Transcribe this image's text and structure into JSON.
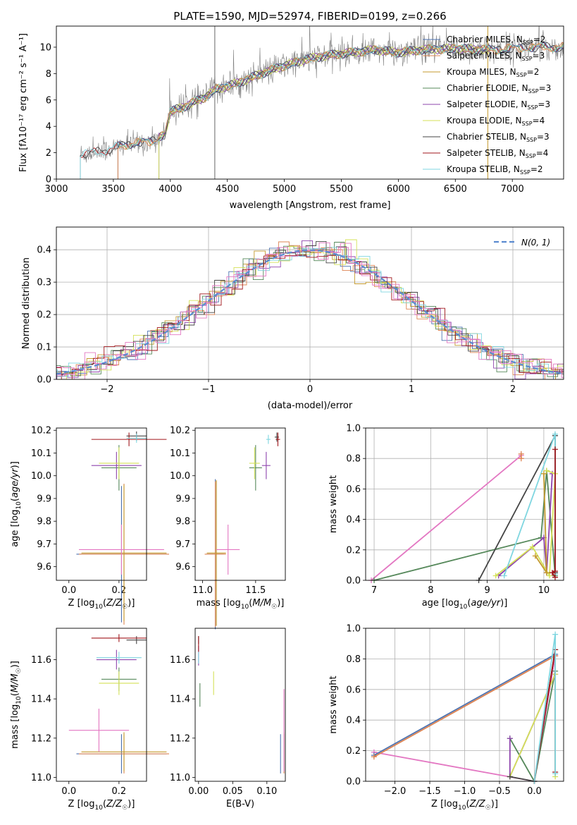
{
  "title": "PLATE=1590, MJD=52974, FIBERID=0199, z=0.266",
  "colors": {
    "Chabrier MILES": "#4c72b0",
    "Salpeter MILES": "#dd8452",
    "Kroupa MILES": "#c49a2e",
    "Chabrier ELODIE": "#55885a",
    "Salpeter ELODIE": "#8e44ad",
    "Kroupa ELODIE": "#d4e157",
    "Chabrier STELIB": "#444444",
    "Salpeter STELIB": "#a0161b",
    "Kroupa STELIB": "#7fd6e0"
  },
  "chart_data": [
    {
      "id": "spectrum",
      "type": "line",
      "xlabel": "wavelength [Angstrom, rest frame]",
      "ylabel": "Flux [fλ10⁻¹⁷ erg cm⁻² s⁻¹ A⁻¹]",
      "xlim": [
        3000,
        7450
      ],
      "ylim": [
        0,
        11.6
      ],
      "xticks": [
        3000,
        3500,
        4000,
        4500,
        5000,
        5500,
        6000,
        6500,
        7000
      ],
      "yticks": [
        0,
        2,
        4,
        6,
        8,
        10
      ],
      "legend_position": "upper-right",
      "legend": [
        {
          "text": "Chabrier MILES, N",
          "sub": "SSP",
          "tail": "=2",
          "series": "Chabrier MILES"
        },
        {
          "text": "Salpeter MILES, N",
          "sub": "SSP",
          "tail": "=3",
          "series": "Salpeter MILES"
        },
        {
          "text": "Kroupa MILES, N",
          "sub": "SSP",
          "tail": "=2",
          "series": "Kroupa MILES"
        },
        {
          "text": "Chabrier ELODIE, N",
          "sub": "SSP",
          "tail": "=3",
          "series": "Chabrier ELODIE"
        },
        {
          "text": "Salpeter ELODIE, N",
          "sub": "SSP",
          "tail": "=3",
          "series": "Salpeter ELODIE"
        },
        {
          "text": "Kroupa ELODIE, N",
          "sub": "SSP",
          "tail": "=4",
          "series": "Kroupa ELODIE"
        },
        {
          "text": "Chabrier STELIB, N",
          "sub": "SSP",
          "tail": "=3",
          "series": "Chabrier STELIB"
        },
        {
          "text": "Salpeter STELIB, N",
          "sub": "SSP",
          "tail": "=4",
          "series": "Salpeter STELIB"
        },
        {
          "text": "Kroupa STELIB, N",
          "sub": "SSP",
          "tail": "=2",
          "series": "Kroupa STELIB"
        }
      ],
      "continuum": {
        "x": [
          3210,
          3400,
          3600,
          3850,
          3950,
          4000,
          4150,
          4300,
          4400,
          4600,
          4800,
          5000,
          5200,
          5400,
          5600,
          5800,
          6000,
          6200,
          6500,
          6800,
          7000,
          7200
        ],
        "y": [
          1.9,
          2.1,
          2.6,
          2.9,
          3.4,
          5.1,
          5.6,
          6.2,
          6.8,
          7.3,
          8.0,
          8.6,
          9.1,
          9.4,
          9.6,
          9.8,
          9.6,
          9.8,
          9.9,
          9.8,
          9.9,
          10.0
        ]
      },
      "series": [
        {
          "name": "Chabrier MILES",
          "range": [
            3540,
            7450
          ]
        },
        {
          "name": "Salpeter MILES",
          "range": [
            3540,
            7450
          ]
        },
        {
          "name": "Kroupa MILES",
          "range": [
            3540,
            7450
          ]
        },
        {
          "name": "Chabrier ELODIE",
          "range": [
            3900,
            6800
          ]
        },
        {
          "name": "Salpeter ELODIE",
          "range": [
            3900,
            6800
          ]
        },
        {
          "name": "Kroupa ELODIE",
          "range": [
            3900,
            6800
          ]
        },
        {
          "name": "Chabrier STELIB",
          "range": [
            3210,
            7450
          ]
        },
        {
          "name": "Salpeter STELIB",
          "range": [
            3210,
            7450
          ]
        },
        {
          "name": "Kroupa STELIB",
          "range": [
            3210,
            7450
          ]
        }
      ],
      "observed": {
        "name": "data",
        "range": [
          3210,
          7450
        ],
        "color": "#808080"
      }
    },
    {
      "id": "residuals",
      "type": "histogram",
      "xlabel": "(data-model)/error",
      "ylabel": "Normed distribution",
      "xlim": [
        -2.5,
        2.5
      ],
      "ylim": [
        0,
        0.47
      ],
      "xticks": [
        -2,
        -1,
        0,
        1,
        2
      ],
      "yticks": [
        0,
        0.1,
        0.2,
        0.3,
        0.4
      ],
      "grid": true,
      "legend_position": "upper-right",
      "legend_label": "N(0, 1)",
      "gaussian": {
        "mean": 0,
        "sigma": 1,
        "color": "#5b8bd0"
      }
    },
    {
      "id": "age-vs-Z",
      "type": "errorbar",
      "xlabel": "Z [log10(Z/Z☉)]",
      "ylabel": "age  [log10(age/yr)]",
      "xlim": [
        -0.05,
        0.31
      ],
      "ylim": [
        9.54,
        10.21
      ],
      "xticks": [
        0.0,
        0.2
      ],
      "yticks": [
        9.6,
        9.7,
        9.8,
        9.9,
        10.0,
        10.1,
        10.2
      ],
      "points": [
        {
          "s": "Chabrier MILES",
          "x": 0.21,
          "xerr": 0.18,
          "y": 9.655,
          "yerr": 0.3
        },
        {
          "s": "Salpeter MILES",
          "x": 0.22,
          "xerr": 0.18,
          "y": 9.655,
          "yerr": 0.31
        },
        {
          "s": "Kroupa MILES",
          "x": 0.22,
          "xerr": 0.17,
          "y": 9.66,
          "yerr": 0.3
        },
        {
          "s": "Chabrier ELODIE",
          "x": 0.2,
          "xerr": 0.07,
          "y": 10.035,
          "yerr": 0.1
        },
        {
          "s": "Salpeter ELODIE",
          "x": 0.19,
          "xerr": 0.1,
          "y": 10.045,
          "yerr": 0.06
        },
        {
          "s": "Kroupa ELODIE",
          "x": 0.2,
          "xerr": 0.08,
          "y": 10.055,
          "yerr": 0.07
        },
        {
          "s": "Chabrier STELIB",
          "x": 0.27,
          "xerr": 0.04,
          "y": 10.175,
          "yerr": 0.02
        },
        {
          "s": "Salpeter STELIB",
          "x": 0.24,
          "xerr": 0.15,
          "y": 10.16,
          "yerr": 0.03
        },
        {
          "s": "Kroupa STELIB",
          "x": 0.27,
          "xerr": 0.04,
          "y": 10.165,
          "yerr": 0.02
        },
        {
          "s": "Pink",
          "x": 0.21,
          "xerr": 0.17,
          "y": 9.675,
          "yerr": 0.11
        }
      ]
    },
    {
      "id": "age-vs-mass",
      "type": "errorbar",
      "xlabel": "mass [log10(M/M☉)]",
      "ylabel": "",
      "xlim": [
        10.93,
        11.78
      ],
      "ylim": [
        9.54,
        10.21
      ],
      "xticks": [
        11.0,
        11.5
      ],
      "yticks": [
        9.6,
        9.7,
        9.8,
        9.9,
        10.0,
        10.1,
        10.2
      ],
      "points": [
        {
          "s": "Chabrier MILES",
          "x": 11.12,
          "xerr": 0.08,
          "y": 9.655,
          "yerr": 0.33
        },
        {
          "s": "Salpeter MILES",
          "x": 11.12,
          "xerr": 0.1,
          "y": 9.655,
          "yerr": 0.32
        },
        {
          "s": "Kroupa MILES",
          "x": 11.13,
          "xerr": 0.09,
          "y": 9.66,
          "yerr": 0.32
        },
        {
          "s": "Chabrier ELODIE",
          "x": 11.5,
          "xerr": 0.06,
          "y": 10.035,
          "yerr": 0.1
        },
        {
          "s": "Salpeter ELODIE",
          "x": 11.6,
          "xerr": 0.04,
          "y": 10.045,
          "yerr": 0.06
        },
        {
          "s": "Kroupa ELODIE",
          "x": 11.49,
          "xerr": 0.05,
          "y": 10.055,
          "yerr": 0.07
        },
        {
          "s": "Chabrier STELIB",
          "x": 11.7,
          "xerr": 0.02,
          "y": 10.17,
          "yerr": 0.02
        },
        {
          "s": "Salpeter STELIB",
          "x": 11.71,
          "xerr": 0.02,
          "y": 10.16,
          "yerr": 0.03
        },
        {
          "s": "Kroupa STELIB",
          "x": 11.62,
          "xerr": 0.02,
          "y": 10.16,
          "yerr": 0.02
        },
        {
          "s": "Pink",
          "x": 11.24,
          "xerr": 0.11,
          "y": 9.675,
          "yerr": 0.11
        }
      ]
    },
    {
      "id": "weight-vs-age",
      "type": "line",
      "xlabel": "age  [log10(age/yr)]",
      "ylabel": "mass weight",
      "xlim": [
        6.85,
        10.35
      ],
      "ylim": [
        0,
        1.0
      ],
      "xticks": [
        7,
        8,
        9,
        10
      ],
      "yticks": [
        0.0,
        0.2,
        0.4,
        0.6,
        0.8,
        1.0
      ],
      "grid": true,
      "series": [
        {
          "s": "Pink",
          "x": [
            6.95,
            9.6
          ],
          "y": [
            0.0,
            0.82
          ]
        },
        {
          "s": "Salpeter MILES",
          "x": [
            9.6,
            9.6
          ],
          "y": [
            0.83,
            0.8
          ]
        },
        {
          "s": "Chabrier ELODIE",
          "x": [
            7.0,
            9.95,
            10.05,
            10.2
          ],
          "y": [
            0.0,
            0.28,
            0.72,
            0.03
          ]
        },
        {
          "s": "Chabrier STELIB",
          "x": [
            8.85,
            10.2,
            10.2
          ],
          "y": [
            0.0,
            0.95,
            0.05
          ]
        },
        {
          "s": "Salpeter ELODIE",
          "x": [
            9.2,
            10.0,
            10.05,
            10.15
          ],
          "y": [
            0.03,
            0.28,
            0.05,
            0.7
          ]
        },
        {
          "s": "Kroupa ELODIE",
          "x": [
            9.15,
            9.8,
            10.1,
            10.2,
            10.05
          ],
          "y": [
            0.03,
            0.22,
            0.03,
            0.7,
            0.72
          ]
        },
        {
          "s": "Kroupa STELIB",
          "x": [
            9.3,
            10.2,
            10.2
          ],
          "y": [
            0.03,
            0.96,
            0.04
          ]
        },
        {
          "s": "Kroupa MILES",
          "x": [
            9.85,
            10.05,
            10.0
          ],
          "y": [
            0.16,
            0.05,
            0.7
          ]
        },
        {
          "s": "Salpeter STELIB",
          "x": [
            10.2,
            10.2,
            10.15,
            10.2
          ],
          "y": [
            0.86,
            0.06,
            0.05,
            0.02
          ]
        }
      ]
    },
    {
      "id": "mass-vs-Z",
      "type": "errorbar",
      "xlabel": "Z [log10(Z/Z☉)]",
      "ylabel": "mass [log10(M/M☉)]",
      "xlim": [
        -0.05,
        0.31
      ],
      "ylim": [
        10.98,
        11.76
      ],
      "xticks": [
        0.0,
        0.2
      ],
      "yticks": [
        11.0,
        11.2,
        11.4,
        11.6
      ],
      "points": [
        {
          "s": "Chabrier MILES",
          "x": 0.21,
          "xerr": 0.18,
          "y": 11.12,
          "yerr": 0.1
        },
        {
          "s": "Salpeter MILES",
          "x": 0.22,
          "xerr": 0.18,
          "y": 11.12,
          "yerr": 0.1
        },
        {
          "s": "Kroupa MILES",
          "x": 0.22,
          "xerr": 0.17,
          "y": 11.13,
          "yerr": 0.1
        },
        {
          "s": "Chabrier ELODIE",
          "x": 0.2,
          "xerr": 0.07,
          "y": 11.5,
          "yerr": 0.06
        },
        {
          "s": "Salpeter ELODIE",
          "x": 0.19,
          "xerr": 0.08,
          "y": 11.6,
          "yerr": 0.05
        },
        {
          "s": "Kroupa ELODIE",
          "x": 0.2,
          "xerr": 0.08,
          "y": 11.48,
          "yerr": 0.06
        },
        {
          "s": "Chabrier STELIB",
          "x": 0.27,
          "xerr": 0.04,
          "y": 11.7,
          "yerr": 0.02
        },
        {
          "s": "Salpeter STELIB",
          "x": 0.2,
          "xerr": 0.11,
          "y": 11.71,
          "yerr": 0.02
        },
        {
          "s": "Kroupa STELIB",
          "x": 0.2,
          "xerr": 0.09,
          "y": 11.61,
          "yerr": 0.03
        },
        {
          "s": "Pink",
          "x": 0.12,
          "xerr": 0.12,
          "y": 11.24,
          "yerr": 0.11
        }
      ]
    },
    {
      "id": "mass-vs-EBV",
      "type": "errorbar",
      "xlabel": "E(B-V)",
      "ylabel": "",
      "xlim": [
        -0.005,
        0.127
      ],
      "ylim": [
        10.98,
        11.76
      ],
      "xticks": [
        0.0,
        0.05,
        0.1
      ],
      "yticks": [
        11.0,
        11.2,
        11.4,
        11.6
      ],
      "points": [
        {
          "s": "Chabrier MILES",
          "x": 0.12,
          "xerr": 0.0,
          "y": 11.12,
          "yerr": 0.1
        },
        {
          "s": "Salpeter MILES",
          "x": 0.125,
          "xerr": 0.0,
          "y": 11.12,
          "yerr": 0.1
        },
        {
          "s": "Kroupa MILES",
          "x": 0.125,
          "xerr": 0.0,
          "y": 11.13,
          "yerr": 0.1
        },
        {
          "s": "Chabrier ELODIE",
          "x": 0.002,
          "xerr": 0.0,
          "y": 11.42,
          "yerr": 0.06
        },
        {
          "s": "Salpeter ELODIE",
          "x": 0.0,
          "xerr": 0.0,
          "y": 11.62,
          "yerr": 0.05
        },
        {
          "s": "Kroupa ELODIE",
          "x": 0.022,
          "xerr": 0.0,
          "y": 11.48,
          "yerr": 0.06
        },
        {
          "s": "Chabrier STELIB",
          "x": 0.0,
          "xerr": 0.0,
          "y": 11.7,
          "yerr": 0.02
        },
        {
          "s": "Salpeter STELIB",
          "x": 0.0,
          "xerr": 0.0,
          "y": 11.68,
          "yerr": 0.04
        },
        {
          "s": "Kroupa STELIB",
          "x": 0.0,
          "xerr": 0.0,
          "y": 11.61,
          "yerr": 0.03
        },
        {
          "s": "Pink",
          "x": 0.125,
          "xerr": 0.0,
          "y": 11.24,
          "yerr": 0.21
        }
      ]
    },
    {
      "id": "weight-vs-Z",
      "type": "line",
      "xlabel": "Z [log10(Z/Z☉)]",
      "ylabel": "mass weight",
      "xlim": [
        -2.42,
        0.42
      ],
      "ylim": [
        0,
        1.0
      ],
      "xticks": [
        -2.0,
        -1.5,
        -1.0,
        -0.5,
        0.0
      ],
      "yticks": [
        0.0,
        0.2,
        0.4,
        0.6,
        0.8,
        1.0
      ],
      "grid": true,
      "series": [
        {
          "s": "Pink",
          "x": [
            -2.3,
            0.0,
            0.3
          ],
          "y": [
            0.19,
            0.0,
            0.82
          ]
        },
        {
          "s": "Chabrier MILES",
          "x": [
            -2.3,
            0.3
          ],
          "y": [
            0.17,
            0.83
          ]
        },
        {
          "s": "Salpeter MILES",
          "x": [
            -2.3,
            0.3
          ],
          "y": [
            0.16,
            0.82
          ]
        },
        {
          "s": "Chabrier ELODIE",
          "x": [
            -0.35,
            0.0,
            0.3
          ],
          "y": [
            0.28,
            0.0,
            0.72
          ]
        },
        {
          "s": "Salpeter ELODIE",
          "x": [
            -0.35,
            -0.35,
            0.3
          ],
          "y": [
            0.28,
            0.03,
            0.7
          ]
        },
        {
          "s": "Kroupa ELODIE",
          "x": [
            -0.35,
            0.3,
            0.3
          ],
          "y": [
            0.03,
            0.7,
            0.03
          ]
        },
        {
          "s": "Chabrier STELIB",
          "x": [
            -0.35,
            0.0,
            0.3
          ],
          "y": [
            0.03,
            0.0,
            0.86
          ]
        },
        {
          "s": "Salpeter STELIB",
          "x": [
            0.0,
            0.3,
            0.3
          ],
          "y": [
            0.0,
            0.86,
            0.06
          ]
        },
        {
          "s": "Kroupa STELIB",
          "x": [
            0.0,
            0.3,
            0.3
          ],
          "y": [
            0.0,
            0.96,
            0.05
          ]
        }
      ]
    }
  ]
}
